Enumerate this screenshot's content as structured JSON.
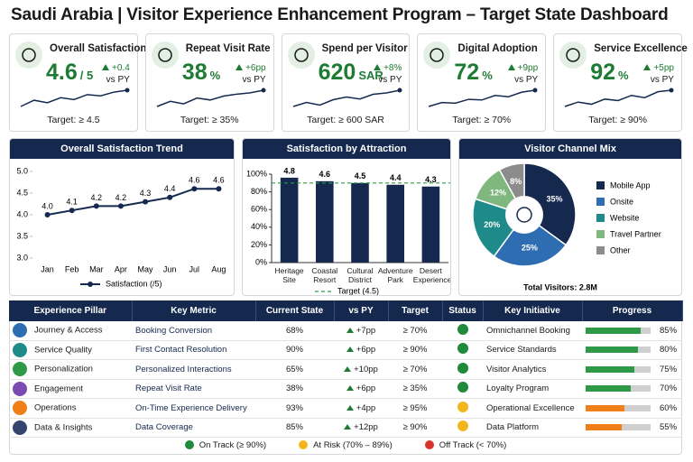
{
  "title": "Saudi Arabia | Visitor Experience Enhancement Program – Target State Dashboard",
  "kpis": [
    {
      "label": "Overall Satisfaction",
      "value": 4.6,
      "unit": "/ 5",
      "delta": "+0.4",
      "vs": "vs PY",
      "target": "Target: ≥ 4.5",
      "trend": [
        3,
        4,
        3.6,
        4.4,
        4.1,
        4.9,
        4.7,
        5.3,
        5.6
      ]
    },
    {
      "label": "Repeat Visit Rate",
      "value": 38,
      "unit": "%",
      "delta": "+6pp",
      "vs": "vs PY",
      "target": "Target: ≥ 35%",
      "trend": [
        3,
        3.8,
        3.4,
        4.3,
        4,
        4.6,
        4.9,
        5.1,
        5.5
      ]
    },
    {
      "label": "Spend per Visitor",
      "value": 620,
      "unit": "SAR",
      "delta": "+8%",
      "vs": "vs PY",
      "target": "Target: ≥ 600 SAR",
      "trend": [
        3.2,
        3.8,
        3.4,
        4.2,
        4.6,
        4.3,
        5,
        5.2,
        5.6
      ]
    },
    {
      "label": "Digital Adoption",
      "value": 72,
      "unit": "%",
      "delta": "+9pp",
      "vs": "vs PY",
      "target": "Target: ≥ 70%",
      "trend": [
        3,
        3.6,
        3.5,
        4.1,
        4,
        4.7,
        4.5,
        5.2,
        5.5
      ]
    },
    {
      "label": "Service Excellence",
      "value": 92,
      "unit": "%",
      "delta": "+5pp",
      "vs": "vs PY",
      "target": "Target: ≥ 90%",
      "trend": [
        3.4,
        4,
        3.7,
        4.4,
        4.2,
        4.9,
        4.6,
        5.4,
        5.6
      ]
    }
  ],
  "chart_data": [
    {
      "type": "line",
      "title": "Overall Satisfaction Trend",
      "categories": [
        "Jan",
        "Feb",
        "Mar",
        "Apr",
        "May",
        "Jun",
        "Jul",
        "Aug"
      ],
      "series": [
        {
          "name": "Satisfaction (/5)",
          "color": "#15294f",
          "values": [
            4.0,
            4.1,
            4.2,
            4.2,
            4.3,
            4.4,
            4.6,
            4.6
          ],
          "value_labels": [
            "4.0",
            "4.1",
            "4.2",
            "4.2",
            "4.3",
            "4.4",
            "4.6",
            "4.6"
          ]
        }
      ],
      "ylim": [
        3,
        5
      ],
      "yticks": [
        {
          "value": 3,
          "label": "3.0"
        },
        {
          "value": 3.5,
          "label": "3.5"
        },
        {
          "value": 4,
          "label": "4.0"
        },
        {
          "value": 4.5,
          "label": "4.5"
        },
        {
          "value": 5,
          "label": "5.0"
        }
      ]
    },
    {
      "type": "bar",
      "title": "Satisfaction by Attraction",
      "categories": [
        "Heritage Site",
        "Coastal Resort",
        "Cultural District",
        "Adventure Park",
        "Desert Experience"
      ],
      "values": [
        4.8,
        4.6,
        4.5,
        4.4,
        4.3
      ],
      "color": "#15294f",
      "ylim": [
        0,
        5
      ],
      "yticks": [
        {
          "value": 0,
          "label": "0%"
        },
        {
          "value": 1,
          "label": "20%"
        },
        {
          "value": 2,
          "label": "40%"
        },
        {
          "value": 3,
          "label": "60%"
        },
        {
          "value": 4,
          "label": "80%"
        },
        {
          "value": 5,
          "label": "100%"
        }
      ],
      "target": {
        "value": 4.5,
        "label": "Target (4.5)",
        "color": "#2e9a47"
      }
    },
    {
      "type": "pie",
      "title": "Visitor Channel Mix",
      "categories": [
        "Mobile App",
        "Onsite",
        "Website",
        "Travel Partner",
        "Other"
      ],
      "values": [
        35,
        25,
        20,
        12,
        8
      ],
      "value_labels": [
        "35%",
        "25%",
        "20%",
        "12%",
        "8%"
      ],
      "colors": [
        "#15294f",
        "#2f6db3",
        "#1f8a8a",
        "#7fb77e",
        "#8c8c8c"
      ],
      "note": "Total Visitors: 2.8M"
    }
  ],
  "table": {
    "headers": [
      "Experience Pillar",
      "Key Metric",
      "Current State",
      "vs PY",
      "Target",
      "Status",
      "Key Initiative",
      "Progress"
    ],
    "rows": [
      {
        "pillar": "Journey & Access",
        "metric": "Booking Conversion",
        "current": "68%",
        "vs": "+7pp",
        "target": "≥ 70%",
        "status_color": "#1e8a3a",
        "initiative": "Omnichannel Booking",
        "progress": {
          "value": 85,
          "label": "85%"
        },
        "bar_color": "#2e9a47"
      },
      {
        "pillar": "Service Quality",
        "metric": "First Contact Resolution",
        "current": "90%",
        "vs": "+6pp",
        "target": "≥ 90%",
        "status_color": "#1e8a3a",
        "initiative": "Service Standards",
        "progress": {
          "value": 80,
          "label": "80%"
        },
        "bar_color": "#2e9a47"
      },
      {
        "pillar": "Personalization",
        "metric": "Personalized Interactions",
        "current": "65%",
        "vs": "+10pp",
        "target": "≥ 70%",
        "status_color": "#1e8a3a",
        "initiative": "Visitor Analytics",
        "progress": {
          "value": 75,
          "label": "75%"
        },
        "bar_color": "#2e9a47"
      },
      {
        "pillar": "Engagement",
        "metric": "Repeat Visit Rate",
        "current": "38%",
        "vs": "+6pp",
        "target": "≥ 35%",
        "status_color": "#1e8a3a",
        "initiative": "Loyalty Program",
        "progress": {
          "value": 70,
          "label": "70%"
        },
        "bar_color": "#2e9a47"
      },
      {
        "pillar": "Operations",
        "metric": "On-Time Experience Delivery",
        "current": "93%",
        "vs": "+4pp",
        "target": "≥ 95%",
        "status_color": "#f2b51d",
        "initiative": "Operational Excellence",
        "progress": {
          "value": 60,
          "label": "60%"
        },
        "bar_color": "#f07f1a"
      },
      {
        "pillar": "Data & Insights",
        "metric": "Data Coverage",
        "current": "85%",
        "vs": "+12pp",
        "target": "≥ 90%",
        "status_color": "#f2b51d",
        "initiative": "Data Platform",
        "progress": {
          "value": 55,
          "label": "55%"
        },
        "bar_color": "#f07f1a"
      }
    ]
  },
  "status_legend": [
    {
      "label": "On Track (≥ 90%)",
      "color": "#1e8a3a"
    },
    {
      "label": "At Risk (70% – 89%)",
      "color": "#f2b51d"
    },
    {
      "label": "Off Track (< 70%)",
      "color": "#d9342b"
    }
  ]
}
